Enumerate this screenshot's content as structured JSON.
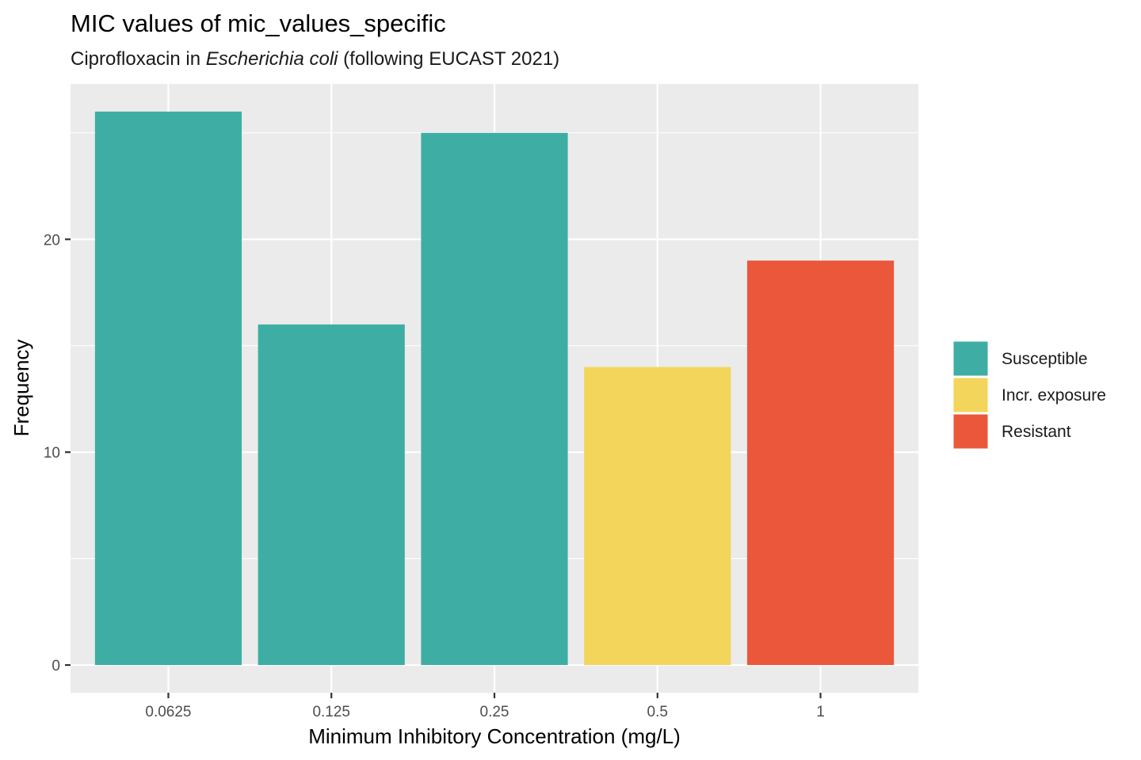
{
  "chart_data": {
    "type": "bar",
    "title": "MIC values of mic_values_specific",
    "subtitle": {
      "before": "Ciprofloxacin in ",
      "italic": "Escherichia coli",
      "after": " (following EUCAST 2021)"
    },
    "xlabel": "Minimum Inhibitory Concentration (mg/L)",
    "ylabel": "Frequency",
    "categories": [
      "0.0625",
      "0.125",
      "0.25",
      "0.5",
      "1"
    ],
    "values": [
      26,
      16,
      25,
      14,
      19
    ],
    "interpretation": [
      "Susceptible",
      "Susceptible",
      "Susceptible",
      "Incr. exposure",
      "Resistant"
    ],
    "ylim": [
      -1.3,
      27.3
    ],
    "yticks": [
      0,
      10,
      20
    ],
    "grid": true,
    "legend_position": "right",
    "legend": [
      {
        "label": "Susceptible",
        "color": "#3EAEA4"
      },
      {
        "label": "Incr. exposure",
        "color": "#F3D55C"
      },
      {
        "label": "Resistant",
        "color": "#EB573B"
      }
    ],
    "colors": {
      "panel_background": "#EBEBEB",
      "grid": "#FFFFFF",
      "axis_tick": "#333333"
    }
  }
}
